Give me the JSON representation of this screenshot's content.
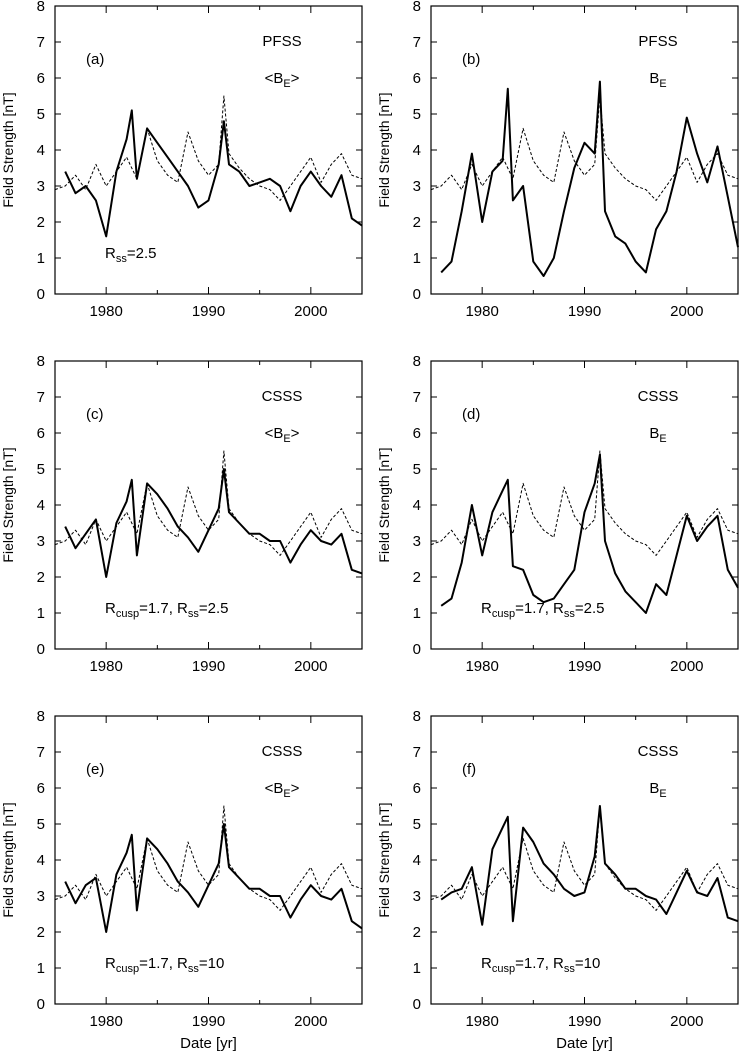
{
  "figure": {
    "x_title": "Date [yr]",
    "y_title": "Field Strength [nT]"
  },
  "style": {
    "model_color": "#000000",
    "observed_color": "#000000",
    "background": "#ffffff"
  },
  "chart_data": [
    {
      "panel": "(a)",
      "type": "line",
      "model": "PFSS",
      "quantity": "<B_E>",
      "params": [
        {
          "sym": "R",
          "sub": "ss",
          "text": "=2.5"
        }
      ],
      "xlabel": "",
      "ylabel": "Field Strength [nT]",
      "xlim": [
        1975,
        2005
      ],
      "ylim": [
        0,
        8
      ],
      "xticks": [
        1980,
        1990,
        2000
      ],
      "yticks": [
        0,
        1,
        2,
        3,
        4,
        5,
        6,
        7,
        8
      ],
      "grid": false,
      "series": [
        {
          "style": "solid",
          "x": [
            1976,
            1977,
            1978,
            1979,
            1980,
            1981,
            1982,
            1982.5,
            1983,
            1984,
            1985,
            1986,
            1987,
            1988,
            1989,
            1990,
            1991,
            1991.5,
            1992,
            1993,
            1994,
            1995,
            1996,
            1997,
            1998,
            1999,
            2000,
            2001,
            2002,
            2003,
            2004,
            2005
          ],
          "y": [
            3.4,
            2.8,
            3.0,
            2.6,
            1.6,
            3.4,
            4.3,
            5.1,
            3.2,
            4.6,
            4.2,
            3.8,
            3.4,
            3.0,
            2.4,
            2.6,
            3.6,
            4.8,
            3.6,
            3.4,
            3.0,
            3.1,
            3.2,
            3.0,
            2.3,
            3.0,
            3.4,
            3.0,
            2.7,
            3.3,
            2.1,
            1.9
          ]
        },
        {
          "style": "dashed",
          "x": [
            1975,
            1976,
            1977,
            1978,
            1979,
            1980,
            1981,
            1982,
            1983,
            1984,
            1985,
            1986,
            1987,
            1988,
            1989,
            1990,
            1991,
            1991.5,
            1992,
            1993,
            1994,
            1995,
            1996,
            1997,
            1998,
            1999,
            2000,
            2001,
            2002,
            2003,
            2004,
            2005
          ],
          "y": [
            2.9,
            3.0,
            3.3,
            2.9,
            3.6,
            3.0,
            3.4,
            3.8,
            3.2,
            4.6,
            3.7,
            3.3,
            3.1,
            4.5,
            3.7,
            3.3,
            3.6,
            5.5,
            3.9,
            3.5,
            3.2,
            3.0,
            2.9,
            2.6,
            3.0,
            3.4,
            3.8,
            3.1,
            3.6,
            3.9,
            3.3,
            3.2
          ]
        }
      ]
    },
    {
      "panel": "(b)",
      "type": "line",
      "model": "PFSS",
      "quantity": "B_E",
      "params": [],
      "xlabel": "",
      "ylabel": "Field Strength [nT]",
      "xlim": [
        1975,
        2005
      ],
      "ylim": [
        0,
        8
      ],
      "xticks": [
        1980,
        1990,
        2000
      ],
      "yticks": [
        0,
        1,
        2,
        3,
        4,
        5,
        6,
        7,
        8
      ],
      "grid": false,
      "series": [
        {
          "style": "solid",
          "x": [
            1976,
            1977,
            1978,
            1979,
            1980,
            1981,
            1982,
            1982.5,
            1983,
            1984,
            1985,
            1986,
            1987,
            1988,
            1989,
            1990,
            1991,
            1991.5,
            1992,
            1993,
            1994,
            1995,
            1996,
            1997,
            1998,
            1999,
            2000,
            2001,
            2002,
            2003,
            2004,
            2005
          ],
          "y": [
            0.6,
            0.9,
            2.3,
            3.9,
            2.0,
            3.4,
            3.7,
            5.7,
            2.6,
            3.0,
            0.9,
            0.5,
            1.0,
            2.3,
            3.5,
            4.2,
            3.9,
            5.9,
            2.3,
            1.6,
            1.4,
            0.9,
            0.6,
            1.8,
            2.3,
            3.4,
            4.9,
            3.9,
            3.1,
            4.1,
            2.7,
            1.3
          ]
        },
        {
          "style": "dashed",
          "x": [
            1975,
            1976,
            1977,
            1978,
            1979,
            1980,
            1981,
            1982,
            1983,
            1984,
            1985,
            1986,
            1987,
            1988,
            1989,
            1990,
            1991,
            1991.5,
            1992,
            1993,
            1994,
            1995,
            1996,
            1997,
            1998,
            1999,
            2000,
            2001,
            2002,
            2003,
            2004,
            2005
          ],
          "y": [
            2.9,
            3.0,
            3.3,
            2.9,
            3.6,
            3.0,
            3.4,
            3.8,
            3.2,
            4.6,
            3.7,
            3.3,
            3.1,
            4.5,
            3.7,
            3.3,
            3.6,
            5.5,
            3.9,
            3.5,
            3.2,
            3.0,
            2.9,
            2.6,
            3.0,
            3.4,
            3.8,
            3.1,
            3.6,
            3.9,
            3.3,
            3.2
          ]
        }
      ]
    },
    {
      "panel": "(c)",
      "type": "line",
      "model": "CSSS",
      "quantity": "<B_E>",
      "params": [
        {
          "sym": "R",
          "sub": "cusp",
          "text": "=1.7, "
        },
        {
          "sym": "R",
          "sub": "ss",
          "text": "=2.5"
        }
      ],
      "xlabel": "",
      "ylabel": "Field Strength [nT]",
      "xlim": [
        1975,
        2005
      ],
      "ylim": [
        0,
        8
      ],
      "xticks": [
        1980,
        1990,
        2000
      ],
      "yticks": [
        0,
        1,
        2,
        3,
        4,
        5,
        6,
        7,
        8
      ],
      "grid": false,
      "series": [
        {
          "style": "solid",
          "x": [
            1976,
            1977,
            1978,
            1979,
            1980,
            1981,
            1982,
            1982.5,
            1983,
            1984,
            1985,
            1986,
            1987,
            1988,
            1989,
            1990,
            1991,
            1991.5,
            1992,
            1993,
            1994,
            1995,
            1996,
            1997,
            1998,
            1999,
            2000,
            2001,
            2002,
            2003,
            2004,
            2005
          ],
          "y": [
            3.4,
            2.8,
            3.2,
            3.6,
            2.0,
            3.5,
            4.1,
            4.7,
            2.6,
            4.6,
            4.3,
            3.9,
            3.4,
            3.1,
            2.7,
            3.3,
            3.9,
            5.0,
            3.8,
            3.5,
            3.2,
            3.2,
            3.0,
            3.0,
            2.4,
            2.9,
            3.3,
            3.0,
            2.9,
            3.2,
            2.2,
            2.1
          ]
        },
        {
          "style": "dashed",
          "x": [
            1975,
            1976,
            1977,
            1978,
            1979,
            1980,
            1981,
            1982,
            1983,
            1984,
            1985,
            1986,
            1987,
            1988,
            1989,
            1990,
            1991,
            1991.5,
            1992,
            1993,
            1994,
            1995,
            1996,
            1997,
            1998,
            1999,
            2000,
            2001,
            2002,
            2003,
            2004,
            2005
          ],
          "y": [
            2.9,
            3.0,
            3.3,
            2.9,
            3.6,
            3.0,
            3.4,
            3.8,
            3.2,
            4.6,
            3.7,
            3.3,
            3.1,
            4.5,
            3.7,
            3.3,
            3.6,
            5.5,
            3.9,
            3.5,
            3.2,
            3.0,
            2.9,
            2.6,
            3.0,
            3.4,
            3.8,
            3.1,
            3.6,
            3.9,
            3.3,
            3.2
          ]
        }
      ]
    },
    {
      "panel": "(d)",
      "type": "line",
      "model": "CSSS",
      "quantity": "B_E",
      "params": [
        {
          "sym": "R",
          "sub": "cusp",
          "text": "=1.7, "
        },
        {
          "sym": "R",
          "sub": "ss",
          "text": "=2.5"
        }
      ],
      "xlabel": "",
      "ylabel": "Field Strength [nT]",
      "xlim": [
        1975,
        2005
      ],
      "ylim": [
        0,
        8
      ],
      "xticks": [
        1980,
        1990,
        2000
      ],
      "yticks": [
        0,
        1,
        2,
        3,
        4,
        5,
        6,
        7,
        8
      ],
      "grid": false,
      "series": [
        {
          "style": "solid",
          "x": [
            1976,
            1977,
            1978,
            1979,
            1980,
            1981,
            1982,
            1982.5,
            1983,
            1984,
            1985,
            1986,
            1987,
            1988,
            1989,
            1990,
            1991,
            1991.5,
            1992,
            1993,
            1994,
            1995,
            1996,
            1997,
            1998,
            1999,
            2000,
            2001,
            2002,
            2003,
            2004,
            2005
          ],
          "y": [
            1.2,
            1.4,
            2.4,
            4.0,
            2.6,
            3.8,
            4.4,
            4.7,
            2.3,
            2.2,
            1.5,
            1.3,
            1.4,
            1.8,
            2.2,
            3.8,
            4.6,
            5.4,
            3.0,
            2.1,
            1.6,
            1.3,
            1.0,
            1.8,
            1.5,
            2.6,
            3.7,
            3.0,
            3.4,
            3.7,
            2.2,
            1.7
          ]
        },
        {
          "style": "dashed",
          "x": [
            1975,
            1976,
            1977,
            1978,
            1979,
            1980,
            1981,
            1982,
            1983,
            1984,
            1985,
            1986,
            1987,
            1988,
            1989,
            1990,
            1991,
            1991.5,
            1992,
            1993,
            1994,
            1995,
            1996,
            1997,
            1998,
            1999,
            2000,
            2001,
            2002,
            2003,
            2004,
            2005
          ],
          "y": [
            2.9,
            3.0,
            3.3,
            2.9,
            3.6,
            3.0,
            3.4,
            3.8,
            3.2,
            4.6,
            3.7,
            3.3,
            3.1,
            4.5,
            3.7,
            3.3,
            3.6,
            5.5,
            3.9,
            3.5,
            3.2,
            3.0,
            2.9,
            2.6,
            3.0,
            3.4,
            3.8,
            3.1,
            3.6,
            3.9,
            3.3,
            3.2
          ]
        }
      ]
    },
    {
      "panel": "(e)",
      "type": "line",
      "model": "CSSS",
      "quantity": "<B_E>",
      "params": [
        {
          "sym": "R",
          "sub": "cusp",
          "text": "=1.7, "
        },
        {
          "sym": "R",
          "sub": "ss",
          "text": "=10"
        }
      ],
      "xlabel": "Date [yr]",
      "ylabel": "Field Strength [nT]",
      "xlim": [
        1975,
        2005
      ],
      "ylim": [
        0,
        8
      ],
      "xticks": [
        1980,
        1990,
        2000
      ],
      "yticks": [
        0,
        1,
        2,
        3,
        4,
        5,
        6,
        7,
        8
      ],
      "grid": false,
      "series": [
        {
          "style": "solid",
          "x": [
            1976,
            1977,
            1978,
            1979,
            1980,
            1981,
            1982,
            1982.5,
            1983,
            1984,
            1985,
            1986,
            1987,
            1988,
            1989,
            1990,
            1991,
            1991.5,
            1992,
            1993,
            1994,
            1995,
            1996,
            1997,
            1998,
            1999,
            2000,
            2001,
            2002,
            2003,
            2004,
            2005
          ],
          "y": [
            3.4,
            2.8,
            3.3,
            3.5,
            2.0,
            3.6,
            4.2,
            4.7,
            2.6,
            4.6,
            4.3,
            3.9,
            3.4,
            3.1,
            2.7,
            3.3,
            3.9,
            5.0,
            3.8,
            3.5,
            3.2,
            3.2,
            3.0,
            3.0,
            2.4,
            2.9,
            3.3,
            3.0,
            2.9,
            3.2,
            2.3,
            2.1
          ]
        },
        {
          "style": "dashed",
          "x": [
            1975,
            1976,
            1977,
            1978,
            1979,
            1980,
            1981,
            1982,
            1983,
            1984,
            1985,
            1986,
            1987,
            1988,
            1989,
            1990,
            1991,
            1991.5,
            1992,
            1993,
            1994,
            1995,
            1996,
            1997,
            1998,
            1999,
            2000,
            2001,
            2002,
            2003,
            2004,
            2005
          ],
          "y": [
            2.9,
            3.0,
            3.3,
            2.9,
            3.6,
            3.0,
            3.4,
            3.8,
            3.2,
            4.6,
            3.7,
            3.3,
            3.1,
            4.5,
            3.7,
            3.3,
            3.6,
            5.5,
            3.9,
            3.5,
            3.2,
            3.0,
            2.9,
            2.6,
            3.0,
            3.4,
            3.8,
            3.1,
            3.6,
            3.9,
            3.3,
            3.2
          ]
        }
      ]
    },
    {
      "panel": "(f)",
      "type": "line",
      "model": "CSSS",
      "quantity": "B_E",
      "params": [
        {
          "sym": "R",
          "sub": "cusp",
          "text": "=1.7, "
        },
        {
          "sym": "R",
          "sub": "ss",
          "text": "=10"
        }
      ],
      "xlabel": "Date [yr]",
      "ylabel": "Field Strength [nT]",
      "xlim": [
        1975,
        2005
      ],
      "ylim": [
        0,
        8
      ],
      "xticks": [
        1980,
        1990,
        2000
      ],
      "yticks": [
        0,
        1,
        2,
        3,
        4,
        5,
        6,
        7,
        8
      ],
      "grid": false,
      "series": [
        {
          "style": "solid",
          "x": [
            1976,
            1977,
            1978,
            1979,
            1980,
            1981,
            1982,
            1982.5,
            1983,
            1984,
            1985,
            1986,
            1987,
            1988,
            1989,
            1990,
            1991,
            1991.5,
            1992,
            1993,
            1994,
            1995,
            1996,
            1997,
            1998,
            1999,
            2000,
            2001,
            2002,
            2003,
            2004,
            2005
          ],
          "y": [
            2.9,
            3.1,
            3.2,
            3.8,
            2.2,
            4.3,
            4.9,
            5.2,
            2.3,
            4.9,
            4.5,
            3.9,
            3.6,
            3.2,
            3.0,
            3.1,
            4.1,
            5.5,
            3.9,
            3.6,
            3.2,
            3.2,
            3.0,
            2.9,
            2.5,
            3.1,
            3.7,
            3.1,
            3.0,
            3.5,
            2.4,
            2.3
          ]
        },
        {
          "style": "dashed",
          "x": [
            1975,
            1976,
            1977,
            1978,
            1979,
            1980,
            1981,
            1982,
            1983,
            1984,
            1985,
            1986,
            1987,
            1988,
            1989,
            1990,
            1991,
            1991.5,
            1992,
            1993,
            1994,
            1995,
            1996,
            1997,
            1998,
            1999,
            2000,
            2001,
            2002,
            2003,
            2004,
            2005
          ],
          "y": [
            2.9,
            3.0,
            3.3,
            2.9,
            3.6,
            3.0,
            3.4,
            3.8,
            3.2,
            4.6,
            3.7,
            3.3,
            3.1,
            4.5,
            3.7,
            3.3,
            3.6,
            5.5,
            3.9,
            3.5,
            3.2,
            3.0,
            2.9,
            2.6,
            3.0,
            3.4,
            3.8,
            3.1,
            3.6,
            3.9,
            3.3,
            3.2
          ]
        }
      ]
    }
  ]
}
